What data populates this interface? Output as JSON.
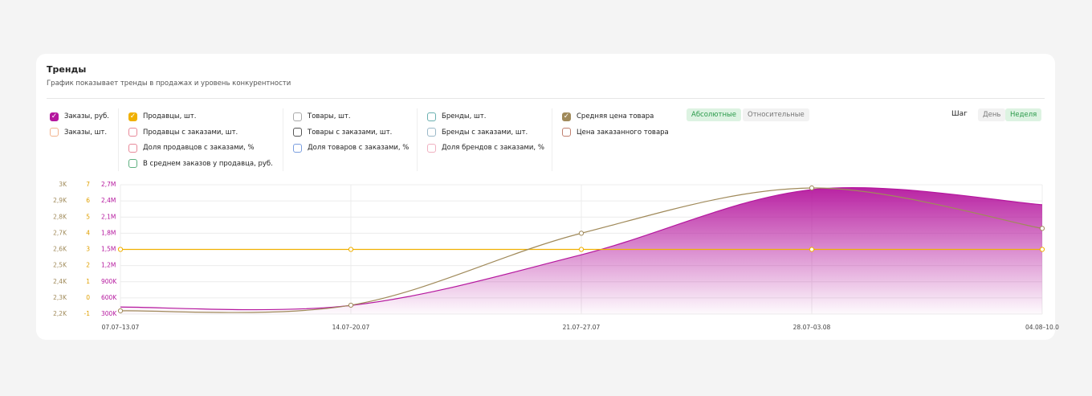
{
  "header": {
    "title": "Тренды",
    "subtitle": "График показывает тренды в продажах и уровень конкурентности"
  },
  "filters": [
    [
      {
        "label": "Заказы, руб.",
        "color": "#b5179e",
        "checked": true
      },
      {
        "label": "Заказы, шт.",
        "color": "#f2b48e",
        "checked": false
      }
    ],
    [
      {
        "label": "Продавцы, шт.",
        "color": "#f0b000",
        "checked": true
      },
      {
        "label": "Продавцы с заказами, шт.",
        "color": "#e88a9a",
        "checked": false
      },
      {
        "label": "Доля продавцов с заказами, %",
        "color": "#e88a9a",
        "checked": false
      },
      {
        "label": "В среднем заказов у продавца, руб.",
        "color": "#5fb080",
        "checked": false
      }
    ],
    [
      {
        "label": "Товары, шт.",
        "color": "#aaaaaa",
        "checked": false
      },
      {
        "label": "Товары с заказами, шт.",
        "color": "#555555",
        "checked": false
      },
      {
        "label": "Доля товаров с заказами, %",
        "color": "#7a9ee0",
        "checked": false
      }
    ],
    [
      {
        "label": "Бренды, шт.",
        "color": "#6ab0b0",
        "checked": false
      },
      {
        "label": "Бренды с заказами, шт.",
        "color": "#9ab8c8",
        "checked": false
      },
      {
        "label": "Доля брендов с заказами, %",
        "color": "#f0b0c0",
        "checked": false
      }
    ],
    [
      {
        "label": "Средняя цена товара",
        "color": "#a08a5a",
        "checked": true
      },
      {
        "label": "Цена заказанного товара",
        "color": "#c08070",
        "checked": false
      }
    ]
  ],
  "mode": {
    "options": [
      "Абсолютные",
      "Относительные"
    ],
    "active": 0
  },
  "step": {
    "label": "Шаг",
    "options": [
      "День",
      "Неделя"
    ],
    "active": 1
  },
  "chart_data": {
    "type": "line",
    "categories": [
      "07.07–13.07",
      "14.07–20.07",
      "21.07–27.07",
      "28.07–03.08",
      "04.08–10.0"
    ],
    "ylim": [
      300000,
      2700000
    ],
    "yticks": [
      {
        "value": 300000,
        "label": "300K"
      },
      {
        "value": 600000,
        "label": "600K"
      },
      {
        "value": 900000,
        "label": "900K"
      },
      {
        "value": 1200000,
        "label": "1,2M"
      },
      {
        "value": 1500000,
        "label": "1,5M"
      },
      {
        "value": 1800000,
        "label": "1,8M"
      },
      {
        "value": 2100000,
        "label": "2,1M"
      },
      {
        "value": 2400000,
        "label": "2,4M"
      },
      {
        "value": 2700000,
        "label": "2,7M"
      }
    ],
    "y2lim": [
      -1,
      7
    ],
    "y2ticks": [
      -1,
      0,
      1,
      2,
      3,
      4,
      5,
      6,
      7
    ],
    "y3lim": [
      2200,
      3000
    ],
    "y3ticks": [
      {
        "value": 2200,
        "label": "2,2K"
      },
      {
        "value": 2300,
        "label": "2,3K"
      },
      {
        "value": 2400,
        "label": "2,4K"
      },
      {
        "value": 2500,
        "label": "2,5K"
      },
      {
        "value": 2600,
        "label": "2,6K"
      },
      {
        "value": 2700,
        "label": "2,7K"
      },
      {
        "value": 2800,
        "label": "2,8K"
      },
      {
        "value": 2900,
        "label": "2,9K"
      },
      {
        "value": 3000,
        "label": "3K"
      }
    ],
    "axis_colors": {
      "y": "#b5179e",
      "y2": "#e0a000",
      "y3": "#a08a5a"
    },
    "grid": true,
    "series": [
      {
        "color": "#b5179e",
        "axis": "y",
        "area": true,
        "values": [
          430000,
          460000,
          1400000,
          2610000,
          2330000
        ]
      },
      {
        "color": "#f0b000",
        "axis": "y2",
        "area": false,
        "values": [
          3,
          3,
          3,
          3,
          3
        ]
      },
      {
        "color": "#a08a5a",
        "axis": "y3",
        "area": false,
        "values": [
          2220,
          2255,
          2700,
          2980,
          2730
        ]
      }
    ]
  }
}
